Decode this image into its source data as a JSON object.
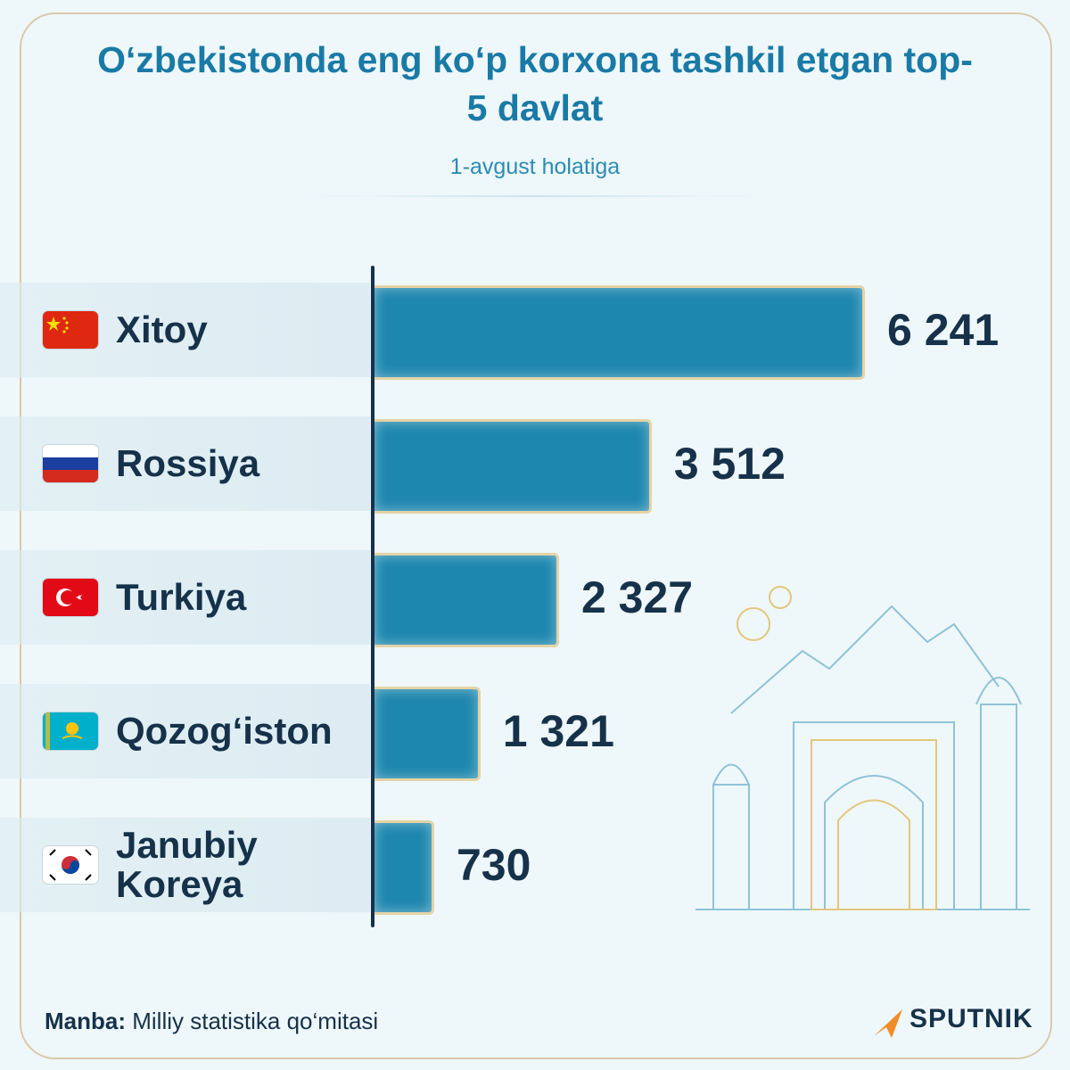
{
  "chart_data": {
    "type": "bar",
    "title": "O‘zbekistonda eng ko‘p korxona tashkil etgan top-5 davlat",
    "subtitle": "1-avgust holatiga",
    "categories": [
      "Xitoy",
      "Rossiya",
      "Turkiya",
      "Qozog‘iston",
      "Janubiy Koreya"
    ],
    "values": [
      6241,
      3512,
      2327,
      1321,
      730
    ],
    "value_labels": [
      "6 241",
      "3 512",
      "2 327",
      "1 321",
      "730"
    ],
    "color": "#1e87ae",
    "source_label": "Manba:",
    "source": "Milliy statistika qo‘mitasi"
  },
  "logo": "SPUTNIK"
}
